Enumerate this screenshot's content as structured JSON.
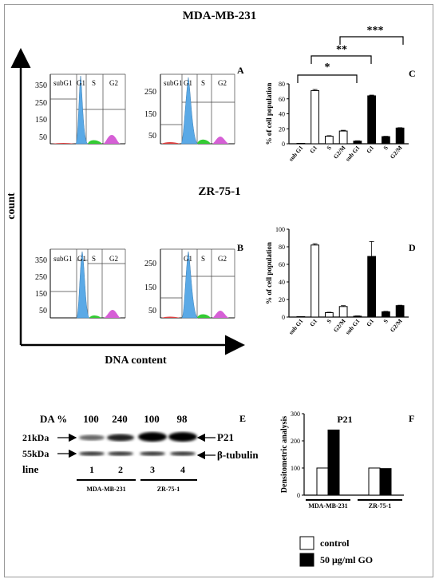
{
  "titles": {
    "mda": "MDA-MB-231",
    "zr": "ZR-75-1"
  },
  "axes": {
    "count": "count",
    "dna": "DNA content"
  },
  "panel_letters": {
    "A": "A",
    "B": "B",
    "C": "C",
    "D": "D",
    "E": "E",
    "F": "F"
  },
  "histogram_labels": {
    "subG1": "subG1",
    "G1": "G1",
    "S": "S",
    "G2": "G2"
  },
  "histogram_ticks": {
    "a_left": [
      "350",
      "250",
      "150",
      "50"
    ],
    "a_right": [
      "250",
      "150",
      "50"
    ],
    "b_left": [
      "350",
      "250",
      "150",
      "50"
    ],
    "b_right": [
      "250",
      "150",
      "50"
    ]
  },
  "colors": {
    "g1_peak": "#5aa9e6",
    "s_phase": "#33cc33",
    "g2_peak": "#d65fd6",
    "subg1": "#e04040"
  },
  "significance": {
    "single": "*",
    "double": "**",
    "triple": "***"
  },
  "chart_data": [
    {
      "type": "bar",
      "panel": "C",
      "ylabel": "% of cell population",
      "ylim": [
        0,
        80
      ],
      "yticks": [
        0,
        20,
        40,
        60,
        80
      ],
      "categories": [
        "sub G1",
        "G1",
        "S",
        "G2/M",
        "sub G1",
        "G1",
        "S",
        "G2/M"
      ],
      "values": [
        0.5,
        71,
        10,
        17,
        3.5,
        64,
        9.5,
        21
      ],
      "errors": [
        0,
        1.5,
        0.8,
        1,
        0.5,
        1,
        0.5,
        0.5
      ],
      "groups": [
        "control",
        "control",
        "control",
        "control",
        "treated",
        "treated",
        "treated",
        "treated"
      ],
      "significance": [
        "*",
        "**",
        "***"
      ]
    },
    {
      "type": "bar",
      "panel": "D",
      "ylabel": "% of cell population",
      "ylim": [
        0,
        100
      ],
      "yticks": [
        0,
        20,
        40,
        60,
        80,
        100
      ],
      "categories": [
        "sub G1",
        "G1",
        "S",
        "G2/M",
        "sub G1",
        "G1",
        "S",
        "G2/M"
      ],
      "values": [
        0.5,
        82,
        5,
        12,
        1,
        69,
        6,
        13
      ],
      "errors": [
        0,
        1.5,
        0.5,
        1,
        0.3,
        17,
        0.5,
        0.5
      ],
      "groups": [
        "control",
        "control",
        "control",
        "control",
        "treated",
        "treated",
        "treated",
        "treated"
      ]
    },
    {
      "type": "bar",
      "panel": "F",
      "title": "P21",
      "ylabel": "Densitometric analysis",
      "ylim": [
        0,
        300
      ],
      "yticks": [
        0,
        100,
        200,
        300
      ],
      "categories": [
        "MDA-MB-231",
        "ZR-75-1"
      ],
      "series": [
        {
          "name": "control",
          "values": [
            100,
            100
          ]
        },
        {
          "name": "50 μg/ml GO",
          "values": [
            240,
            98
          ]
        }
      ]
    }
  ],
  "blot": {
    "da_label": "DA %",
    "da_values": [
      "100",
      "240",
      "100",
      "98"
    ],
    "size_21": "21kDa",
    "size_55": "55kDa",
    "band_p21": "P21",
    "band_tubulin": "β-tubulin",
    "line_label": "line",
    "lanes": [
      "1",
      "2",
      "3",
      "4"
    ],
    "cell_lines": [
      "MDA-MB-231",
      "ZR-75-1"
    ]
  },
  "legend": {
    "control": "control",
    "treated": "50 μg/ml GO"
  }
}
